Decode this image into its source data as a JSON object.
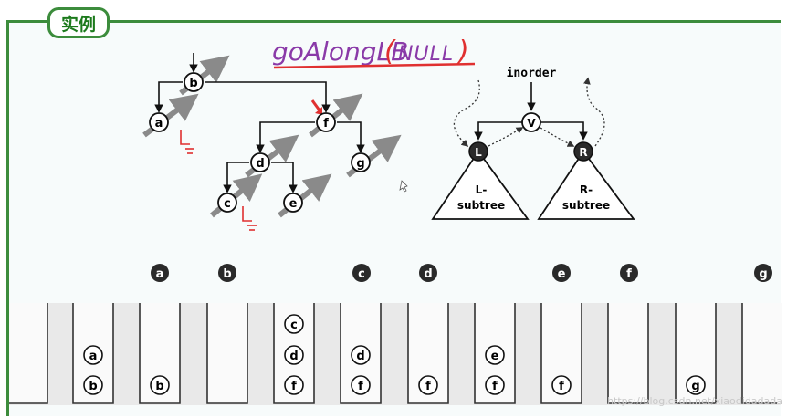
{
  "title_tab": "实例",
  "annotation": {
    "fn_name": "goAlongLB",
    "paren_open": "(",
    "arg": "NULL",
    "paren_close": ")"
  },
  "tree_nodes": [
    "b",
    "a",
    "f",
    "d",
    "g",
    "c",
    "e"
  ],
  "schema": {
    "root": "V",
    "left": "L",
    "right": "R",
    "left_subtree": [
      "L-",
      "subtree"
    ],
    "right_subtree": [
      "R-",
      "subtree"
    ],
    "inorder_label": "inorder"
  },
  "output_sequence": [
    "a",
    "b",
    "c",
    "d",
    "e",
    "f",
    "g"
  ],
  "stack_states": [
    [],
    [
      "a",
      "b"
    ],
    [
      "b"
    ],
    [],
    [
      "c",
      "d",
      "f"
    ],
    [
      "d",
      "f"
    ],
    [
      "f"
    ],
    [
      "e",
      "f"
    ],
    [
      "f"
    ],
    [],
    [
      "g"
    ],
    []
  ],
  "watermark": "https://blog.csdn.net/xiaodidadada",
  "colors": {
    "frame_green": "#3c8c3c",
    "title_text": "#1c7a1c",
    "annotation_purple": "#8a3aa8",
    "annotation_red": "#e03030",
    "null_red": "#e03030",
    "arrow_gray": "#888888",
    "dark_node": "#2a2a2a"
  }
}
